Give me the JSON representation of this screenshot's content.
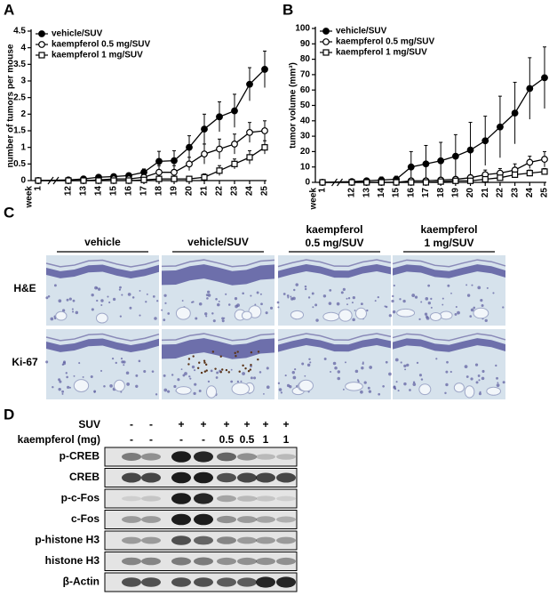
{
  "chart_data": [
    {
      "type": "line",
      "label": "A",
      "ylabel": "number of tumors per mouse",
      "xlabel": "week",
      "categories": [
        "1",
        "12",
        "13",
        "14",
        "15",
        "16",
        "17",
        "18",
        "19",
        "20",
        "21",
        "22",
        "23",
        "24",
        "25"
      ],
      "ylim": [
        0,
        4.5
      ],
      "yticks": [
        0,
        0.5,
        1,
        1.5,
        2,
        2.5,
        3,
        3.5,
        4,
        4.5
      ],
      "legend": "upper left",
      "series": [
        {
          "name": "vehicle/SUV",
          "color": "#000000",
          "marker": "circle",
          "marker_fill": "#000000",
          "values": [
            0,
            0.02,
            0.05,
            0.1,
            0.12,
            0.15,
            0.25,
            0.58,
            0.6,
            1.0,
            1.55,
            1.92,
            2.1,
            2.9,
            3.35
          ],
          "errors": [
            0,
            0,
            0.05,
            0.05,
            0.05,
            0.05,
            0.1,
            0.3,
            0.3,
            0.35,
            0.45,
            0.45,
            0.5,
            0.5,
            0.55
          ]
        },
        {
          "name": "kaempferol 0.5 mg/SUV",
          "color": "#000000",
          "marker": "circle",
          "marker_fill": "#ffffff",
          "values": [
            0,
            0,
            0,
            0.02,
            0.05,
            0.05,
            0.1,
            0.25,
            0.25,
            0.5,
            0.8,
            0.95,
            1.1,
            1.45,
            1.5
          ],
          "errors": [
            0,
            0,
            0,
            0.05,
            0.05,
            0.05,
            0.1,
            0.2,
            0.2,
            0.2,
            0.3,
            0.3,
            0.3,
            0.3,
            0.3
          ]
        },
        {
          "name": "kaempferol 1 mg/SUV",
          "color": "#000000",
          "marker": "square",
          "marker_fill": "#ffffff",
          "values": [
            0,
            0,
            0,
            0,
            0,
            0,
            0.02,
            0.05,
            0.05,
            0.05,
            0.1,
            0.3,
            0.5,
            0.7,
            1.0
          ],
          "errors": [
            0,
            0,
            0,
            0,
            0,
            0,
            0.05,
            0.05,
            0.05,
            0.05,
            0.1,
            0.15,
            0.15,
            0.2,
            0.2
          ]
        }
      ]
    },
    {
      "type": "line",
      "label": "B",
      "ylabel": "tumor volume (mm³)",
      "xlabel": "week",
      "categories": [
        "1",
        "12",
        "13",
        "14",
        "15",
        "16",
        "17",
        "18",
        "19",
        "20",
        "21",
        "22",
        "23",
        "24",
        "25"
      ],
      "ylim": [
        0,
        100
      ],
      "yticks": [
        0,
        10,
        20,
        30,
        40,
        50,
        60,
        70,
        80,
        90,
        100
      ],
      "legend": "upper left",
      "series": [
        {
          "name": "vehicle/SUV",
          "color": "#000000",
          "marker": "circle",
          "marker_fill": "#000000",
          "values": [
            0,
            0.5,
            1,
            1.5,
            2,
            10,
            12,
            14,
            17,
            21,
            27,
            36,
            45,
            61,
            68
          ],
          "errors": [
            0,
            1,
            1,
            2,
            2,
            10,
            12,
            12,
            14,
            18,
            16,
            20,
            20,
            20,
            20
          ]
        },
        {
          "name": "kaempferol 0.5 mg/SUV",
          "color": "#000000",
          "marker": "circle",
          "marker_fill": "#ffffff",
          "values": [
            0,
            0,
            0,
            0,
            0,
            1,
            1,
            1.5,
            2,
            3,
            5,
            6,
            8,
            13,
            15
          ],
          "errors": [
            0,
            0,
            0,
            0,
            0,
            1,
            1,
            1,
            1,
            2,
            3,
            3,
            4,
            4,
            5
          ]
        },
        {
          "name": "kaempferol 1 mg/SUV",
          "color": "#000000",
          "marker": "square",
          "marker_fill": "#ffffff",
          "values": [
            0,
            0,
            0,
            0,
            0,
            0,
            0,
            0.5,
            1,
            1,
            2,
            3,
            5,
            6,
            7
          ],
          "errors": [
            0,
            0,
            0,
            0,
            0,
            0,
            0,
            0.5,
            1,
            1,
            1,
            1,
            2,
            2,
            2
          ]
        }
      ]
    }
  ],
  "panel_c": {
    "label": "C",
    "columns": [
      [
        "vehicle"
      ],
      [
        "vehicle/SUV"
      ],
      [
        "kaempferol",
        "0.5 mg/SUV"
      ],
      [
        "kaempferol",
        "1 mg/SUV"
      ]
    ],
    "rows": [
      "H&E",
      "Ki-67"
    ]
  },
  "panel_d": {
    "label": "D",
    "conditions": [
      {
        "name": "SUV",
        "lanes": [
          "-",
          "-",
          "+",
          "+",
          "+",
          "+",
          "+",
          "+"
        ]
      },
      {
        "name": "kaempferol (mg)",
        "lanes": [
          "-",
          "-",
          "-",
          "-",
          "0.5",
          "0.5",
          "1",
          "1"
        ]
      }
    ],
    "blots": [
      "p-CREB",
      "CREB",
      "p-c-Fos",
      "c-Fos",
      "p-histone H3",
      "histone H3",
      "β-Actin"
    ]
  }
}
